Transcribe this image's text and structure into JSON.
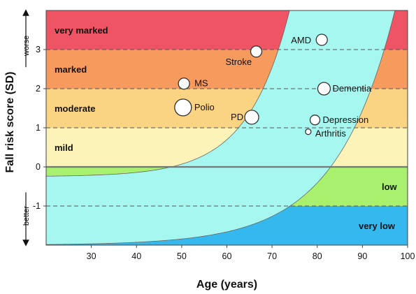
{
  "chart_data": {
    "type": "scatter",
    "xlabel": "Age (years)",
    "ylabel": "Fall risk score (SD)",
    "xlim": [
      20,
      100
    ],
    "ylim": [
      -2,
      4
    ],
    "x_ticks": [
      30,
      40,
      50,
      60,
      70,
      80,
      90,
      100
    ],
    "y_ticks": [
      3,
      2,
      1,
      0,
      -1
    ],
    "y_tick_labels": [
      "3",
      "2",
      "1",
      "0",
      "-1"
    ],
    "direction_labels": {
      "up": "worse",
      "down": "better"
    },
    "zones": [
      {
        "label": "very marked",
        "from": 3,
        "to": 4,
        "color": "#EE5463"
      },
      {
        "label": "marked",
        "from": 2,
        "to": 3,
        "color": "#F79A5E"
      },
      {
        "label": "moderate",
        "from": 1,
        "to": 2,
        "color": "#FAD483"
      },
      {
        "label": "mild",
        "from": 0,
        "to": 1,
        "color": "#FCF3B8"
      },
      {
        "label": "",
        "from": -0.25,
        "to": 0,
        "color": "#A9F06E"
      },
      {
        "label": "low",
        "from": -1,
        "to": 0,
        "color": "#A9F06E"
      },
      {
        "label": "very low",
        "from": -2,
        "to": -1,
        "color": "#34B8EE"
      }
    ],
    "normal_band_color": "#A6F7F0",
    "points": [
      {
        "name": "AMD",
        "x": 81,
        "y": 3.25,
        "size": 8
      },
      {
        "name": "Stroke",
        "x": 66.5,
        "y": 2.95,
        "size": 8
      },
      {
        "name": "MS",
        "x": 50.5,
        "y": 2.13,
        "size": 8
      },
      {
        "name": "Dementia",
        "x": 81.5,
        "y": 2.0,
        "size": 9
      },
      {
        "name": "Polio",
        "x": 50.3,
        "y": 1.52,
        "size": 12
      },
      {
        "name": "PD",
        "x": 65.5,
        "y": 1.27,
        "size": 10
      },
      {
        "name": "Depression",
        "x": 79.5,
        "y": 1.2,
        "size": 7
      },
      {
        "name": "Arthritis",
        "x": 78,
        "y": 0.9,
        "size": 4
      }
    ],
    "grid": "dashed horizontal at each integer y",
    "legend": "none"
  }
}
